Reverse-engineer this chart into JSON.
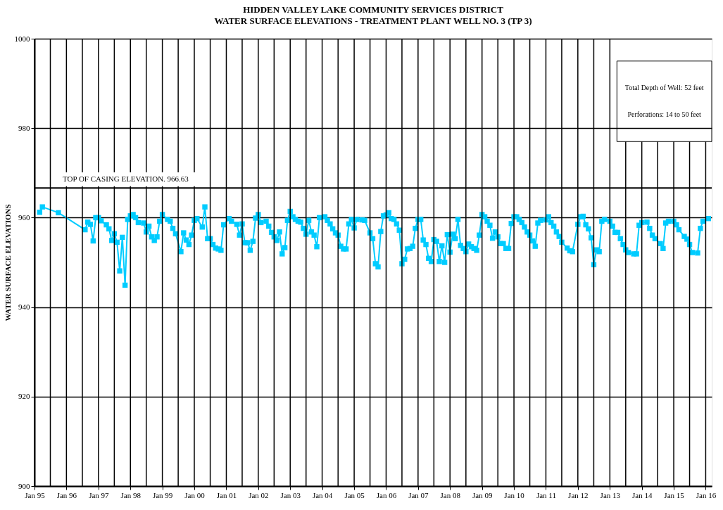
{
  "chart_data": {
    "type": "line",
    "title": "HIDDEN VALLEY LAKE COMMUNITY SERVICES DISTRICT",
    "subtitle": "WATER SURFACE ELEVATIONS - TREATMENT PLANT WELL NO. 3 (TP 3)",
    "ylabel": "WATER SURFACE ELEVATIONS",
    "annotations": [
      "Total Depth of Well:  52 feet",
      "Perforations:  14 to 50 feet"
    ],
    "x": [
      "1995-03",
      "1995-04",
      "1995-10",
      "1996-08",
      "1996-09",
      "1996-10",
      "1996-11",
      "1996-12",
      "1997-01",
      "1997-02",
      "1997-04",
      "1997-05",
      "1997-06",
      "1997-07",
      "1997-08",
      "1997-09",
      "1997-10",
      "1997-11",
      "1997-12",
      "1998-01",
      "1998-02",
      "1998-03",
      "1998-04",
      "1998-06",
      "1998-07",
      "1998-08",
      "1998-09",
      "1998-10",
      "1998-11",
      "1998-12",
      "1999-01",
      "1999-03",
      "1999-04",
      "1999-05",
      "1999-06",
      "1999-08",
      "1999-09",
      "1999-10",
      "1999-11",
      "1999-12",
      "2000-01",
      "2000-02",
      "2000-04",
      "2000-05",
      "2000-06",
      "2000-07",
      "2000-08",
      "2000-09",
      "2000-10",
      "2000-11",
      "2000-12",
      "2001-02",
      "2001-03",
      "2001-05",
      "2001-06",
      "2001-07",
      "2001-08",
      "2001-09",
      "2001-10",
      "2001-11",
      "2001-12",
      "2002-01",
      "2002-02",
      "2002-04",
      "2002-05",
      "2002-06",
      "2002-07",
      "2002-08",
      "2002-09",
      "2002-10",
      "2002-11",
      "2002-12",
      "2003-01",
      "2003-02",
      "2003-03",
      "2003-04",
      "2003-05",
      "2003-06",
      "2003-07",
      "2003-08",
      "2003-09",
      "2003-10",
      "2003-11",
      "2003-12",
      "2004-02",
      "2004-03",
      "2004-04",
      "2004-05",
      "2004-06",
      "2004-07",
      "2004-08",
      "2004-09",
      "2004-10",
      "2004-11",
      "2004-12",
      "2005-01",
      "2005-02",
      "2005-04",
      "2005-05",
      "2005-07",
      "2005-08",
      "2005-09",
      "2005-10",
      "2005-11",
      "2005-12",
      "2006-01",
      "2006-02",
      "2006-03",
      "2006-04",
      "2006-05",
      "2006-06",
      "2006-07",
      "2006-08",
      "2006-09",
      "2006-10",
      "2006-11",
      "2006-12",
      "2007-01",
      "2007-02",
      "2007-03",
      "2007-04",
      "2007-05",
      "2007-06",
      "2007-07",
      "2007-08",
      "2007-09",
      "2007-10",
      "2007-11",
      "2007-12",
      "2008-01",
      "2008-02",
      "2008-03",
      "2008-04",
      "2008-05",
      "2008-06",
      "2008-07",
      "2008-08",
      "2008-09",
      "2008-10",
      "2008-11",
      "2008-12",
      "2009-01",
      "2009-02",
      "2009-03",
      "2009-04",
      "2009-05",
      "2009-06",
      "2009-07",
      "2009-08",
      "2009-09",
      "2009-10",
      "2009-11",
      "2009-12",
      "2010-01",
      "2010-02",
      "2010-03",
      "2010-04",
      "2010-05",
      "2010-06",
      "2010-07",
      "2010-08",
      "2010-09",
      "2010-10",
      "2010-11",
      "2011-01",
      "2011-02",
      "2011-03",
      "2011-04",
      "2011-05",
      "2011-06",
      "2011-07",
      "2011-09",
      "2011-10",
      "2011-11",
      "2012-01",
      "2012-02",
      "2012-03",
      "2012-04",
      "2012-05",
      "2012-06",
      "2012-07",
      "2012-08",
      "2012-09",
      "2012-10",
      "2012-11",
      "2013-01",
      "2013-02",
      "2013-03",
      "2013-04",
      "2013-05",
      "2013-06",
      "2013-07",
      "2013-08",
      "2013-10",
      "2013-11",
      "2013-12",
      "2014-01",
      "2014-03",
      "2014-04",
      "2014-05",
      "2014-06",
      "2014-08",
      "2014-09",
      "2014-10",
      "2014-11",
      "2015-01",
      "2015-02",
      "2015-03",
      "2015-05",
      "2015-06",
      "2015-07",
      "2015-08",
      "2015-10",
      "2015-11",
      "2015-12",
      "2016-02"
    ],
    "series": [
      {
        "color": "#00ccff",
        "values": [
          961.2,
          962.4,
          961.1,
          957.3,
          959.0,
          958.5,
          954.8,
          960.0,
          960.0,
          959.3,
          958.4,
          957.5,
          954.9,
          956.4,
          954.5,
          948.1,
          955.6,
          944.9,
          959.6,
          960.4,
          960.7,
          960.0,
          958.9,
          958.8,
          956.8,
          958.1,
          955.7,
          954.9,
          955.7,
          959.2,
          960.7,
          959.6,
          959.2,
          957.6,
          956.4,
          952.4,
          956.6,
          955.0,
          954.0,
          956.1,
          959.4,
          959.8,
          957.9,
          962.4,
          955.3,
          955.3,
          954.0,
          953.2,
          953.0,
          952.7,
          958.4,
          959.8,
          959.2,
          958.5,
          956.1,
          958.6,
          954.4,
          954.4,
          952.7,
          954.7,
          959.9,
          960.7,
          958.9,
          959.2,
          958.1,
          956.7,
          955.7,
          954.9,
          956.8,
          951.9,
          953.3,
          959.4,
          961.4,
          960.2,
          959.6,
          959.2,
          959.0,
          957.6,
          956.3,
          959.4,
          956.8,
          956.1,
          953.5,
          960.0,
          960.2,
          959.4,
          958.6,
          957.5,
          956.6,
          956.1,
          953.6,
          953.0,
          953.0,
          958.6,
          959.6,
          957.7,
          959.6,
          959.5,
          959.4,
          956.6,
          955.3,
          949.7,
          949.0,
          956.9,
          960.4,
          960.6,
          961.1,
          959.8,
          959.6,
          958.6,
          957.2,
          949.7,
          950.7,
          953.0,
          953.1,
          953.6,
          957.6,
          959.6,
          959.6,
          955.0,
          954.0,
          950.9,
          950.2,
          955.1,
          954.7,
          950.2,
          953.7,
          950.0,
          956.2,
          952.3,
          956.3,
          955.3,
          959.6,
          953.8,
          953.1,
          952.4,
          954.1,
          953.5,
          953.1,
          952.7,
          956.1,
          960.7,
          960.2,
          959.2,
          958.3,
          955.4,
          956.8,
          955.7,
          954.2,
          954.2,
          953.1,
          953.1,
          958.7,
          960.2,
          960.2,
          959.6,
          958.9,
          957.9,
          956.8,
          956.1,
          954.8,
          953.6,
          958.8,
          959.4,
          959.5,
          960.2,
          958.9,
          958.1,
          956.8,
          955.8,
          954.5,
          953.2,
          952.6,
          952.4,
          958.5,
          960.2,
          960.3,
          958.4,
          957.5,
          955.5,
          949.5,
          952.8,
          952.4,
          959.2,
          959.6,
          959.2,
          958.1,
          956.7,
          956.7,
          955.3,
          954.0,
          952.8,
          952.2,
          951.9,
          951.9,
          958.3,
          958.9,
          959.0,
          957.6,
          956.1,
          955.3,
          954.2,
          953.1,
          958.8,
          959.2,
          959.2,
          958.4,
          957.3,
          955.8,
          955.2,
          954.0,
          952.2,
          952.1,
          957.6,
          959.2,
          959.8
        ]
      }
    ],
    "marker": "square",
    "line_style": "solid",
    "grid": true,
    "xlim": [
      "1995-01-01",
      "2016-03-10"
    ],
    "xticks": [
      {
        "value": "1995-01",
        "label": "Jan 95"
      },
      {
        "value": "1995-07",
        "label": null
      },
      {
        "value": "1996-01",
        "label": "Jan 96"
      },
      {
        "value": "1996-07",
        "label": null
      },
      {
        "value": "1997-01",
        "label": "Jan 97"
      },
      {
        "value": "1997-07",
        "label": null
      },
      {
        "value": "1998-01",
        "label": "Jan 98"
      },
      {
        "value": "1998-07",
        "label": null
      },
      {
        "value": "1999-01",
        "label": "Jan 99"
      },
      {
        "value": "1999-07",
        "label": null
      },
      {
        "value": "2000-01",
        "label": "Jan 00"
      },
      {
        "value": "2000-07",
        "label": null
      },
      {
        "value": "2001-01",
        "label": "Jan 01"
      },
      {
        "value": "2001-07",
        "label": null
      },
      {
        "value": "2002-01",
        "label": "Jan 02"
      },
      {
        "value": "2002-07",
        "label": null
      },
      {
        "value": "2003-01",
        "label": "Jan 03"
      },
      {
        "value": "2003-07",
        "label": null
      },
      {
        "value": "2004-01",
        "label": "Jan 04"
      },
      {
        "value": "2004-07",
        "label": null
      },
      {
        "value": "2005-01",
        "label": "Jan 05"
      },
      {
        "value": "2005-07",
        "label": null
      },
      {
        "value": "2006-01",
        "label": "Jan 06"
      },
      {
        "value": "2006-07",
        "label": null
      },
      {
        "value": "2007-01",
        "label": "Jan 07"
      },
      {
        "value": "2007-07",
        "label": null
      },
      {
        "value": "2008-01",
        "label": "Jan 08"
      },
      {
        "value": "2008-07",
        "label": null
      },
      {
        "value": "2009-01",
        "label": "Jan 09"
      },
      {
        "value": "2009-07",
        "label": null
      },
      {
        "value": "2010-01",
        "label": "Jan 10"
      },
      {
        "value": "2010-07",
        "label": null
      },
      {
        "value": "2011-01",
        "label": "Jan 11"
      },
      {
        "value": "2011-07",
        "label": null
      },
      {
        "value": "2012-01",
        "label": "Jan 12"
      },
      {
        "value": "2012-07",
        "label": null
      },
      {
        "value": "2013-01",
        "label": "Jan 13"
      },
      {
        "value": "2013-07",
        "label": null
      },
      {
        "value": "2014-01",
        "label": "Jan 14"
      },
      {
        "value": "2014-07",
        "label": null
      },
      {
        "value": "2015-01",
        "label": "Jan 15"
      },
      {
        "value": "2015-07",
        "label": null
      },
      {
        "value": "2016-01",
        "label": "Jan 16"
      }
    ],
    "ylim": [
      900,
      1000
    ],
    "yticks": [
      900,
      920,
      940,
      960,
      980,
      1000
    ],
    "ref_lines": [
      {
        "axis": "y",
        "value": 966.63,
        "label": "TOP OF CASING ELEVATION. 966.63",
        "color": "#000000"
      }
    ]
  }
}
